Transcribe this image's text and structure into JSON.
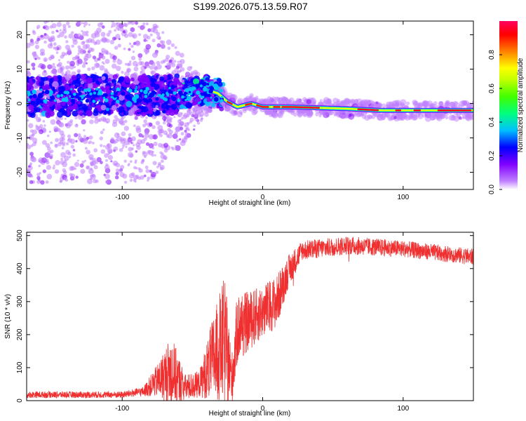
{
  "title": "S199.2026.075.13.59.R07",
  "chart_data": [
    {
      "type": "heatmap",
      "id": "spectrogram",
      "xlabel": "Height of straight line (km)",
      "ylabel": "Frequency (Hz)",
      "xlim": [
        -168,
        150
      ],
      "ylim": [
        -25,
        24
      ],
      "xticks": [
        -100,
        0,
        100
      ],
      "xtick_labels": [
        "-100",
        "0",
        "100"
      ],
      "yticks": [
        -20,
        -10,
        0,
        10,
        20
      ],
      "ytick_labels": [
        "-20",
        "-10",
        "0",
        "10",
        "20"
      ],
      "ridge_frequency": [
        {
          "x": -165,
          "y": 2
        },
        {
          "x": -120,
          "y": 2.5
        },
        {
          "x": -80,
          "y": 2.5
        },
        {
          "x": -50,
          "y": 3
        },
        {
          "x": -40,
          "y": 4
        },
        {
          "x": -32,
          "y": 3
        },
        {
          "x": -25,
          "y": 0.5
        },
        {
          "x": -18,
          "y": -1
        },
        {
          "x": -8,
          "y": 0
        },
        {
          "x": 0,
          "y": -1
        },
        {
          "x": 20,
          "y": -1
        },
        {
          "x": 60,
          "y": -1.5
        },
        {
          "x": 85,
          "y": -2
        },
        {
          "x": 150,
          "y": -2
        }
      ],
      "colorbar": {
        "label": "Normalized spectral amplitude",
        "range": [
          0.0,
          1.0
        ],
        "ticks": [
          0.0,
          0.2,
          0.4,
          0.6,
          0.8
        ],
        "tick_labels": [
          "0.0",
          "0.2",
          "0.4",
          "0.6",
          "0.8"
        ],
        "colors": [
          "#ffffff",
          "#c080ff",
          "#8000ff",
          "#0000ff",
          "#00c0ff",
          "#00ff80",
          "#40ff00",
          "#c0ff00",
          "#ffff00",
          "#ff8000",
          "#ff0000",
          "#ff0060"
        ]
      }
    },
    {
      "type": "line",
      "id": "snr",
      "xlabel": "Height of straight line (km)",
      "ylabel": "SNR (10 * v/v)",
      "xlim": [
        -168,
        150
      ],
      "ylim": [
        0,
        510
      ],
      "xticks": [
        -100,
        0,
        100
      ],
      "xtick_labels": [
        "-100",
        "0",
        "100"
      ],
      "yticks": [
        0,
        100,
        200,
        300,
        400,
        500
      ],
      "ytick_labels": [
        "0",
        "100",
        "200",
        "300",
        "400",
        "500"
      ],
      "line_color": "#f03030",
      "envelope": [
        {
          "x": -168,
          "mean": 18,
          "amp": 10
        },
        {
          "x": -100,
          "mean": 18,
          "amp": 10
        },
        {
          "x": -85,
          "mean": 28,
          "amp": 14
        },
        {
          "x": -75,
          "mean": 60,
          "amp": 50
        },
        {
          "x": -65,
          "mean": 90,
          "amp": 110
        },
        {
          "x": -55,
          "mean": 40,
          "amp": 40
        },
        {
          "x": -45,
          "mean": 50,
          "amp": 40
        },
        {
          "x": -35,
          "mean": 130,
          "amp": 130
        },
        {
          "x": -27,
          "mean": 180,
          "amp": 200
        },
        {
          "x": -22,
          "mean": 60,
          "amp": 80
        },
        {
          "x": -18,
          "mean": 220,
          "amp": 110
        },
        {
          "x": -10,
          "mean": 240,
          "amp": 90
        },
        {
          "x": 0,
          "mean": 270,
          "amp": 80
        },
        {
          "x": 10,
          "mean": 300,
          "amp": 80
        },
        {
          "x": 18,
          "mean": 390,
          "amp": 50
        },
        {
          "x": 28,
          "mean": 455,
          "amp": 30
        },
        {
          "x": 60,
          "mean": 470,
          "amp": 28
        },
        {
          "x": 100,
          "mean": 460,
          "amp": 25
        },
        {
          "x": 150,
          "mean": 435,
          "amp": 25
        }
      ]
    }
  ]
}
